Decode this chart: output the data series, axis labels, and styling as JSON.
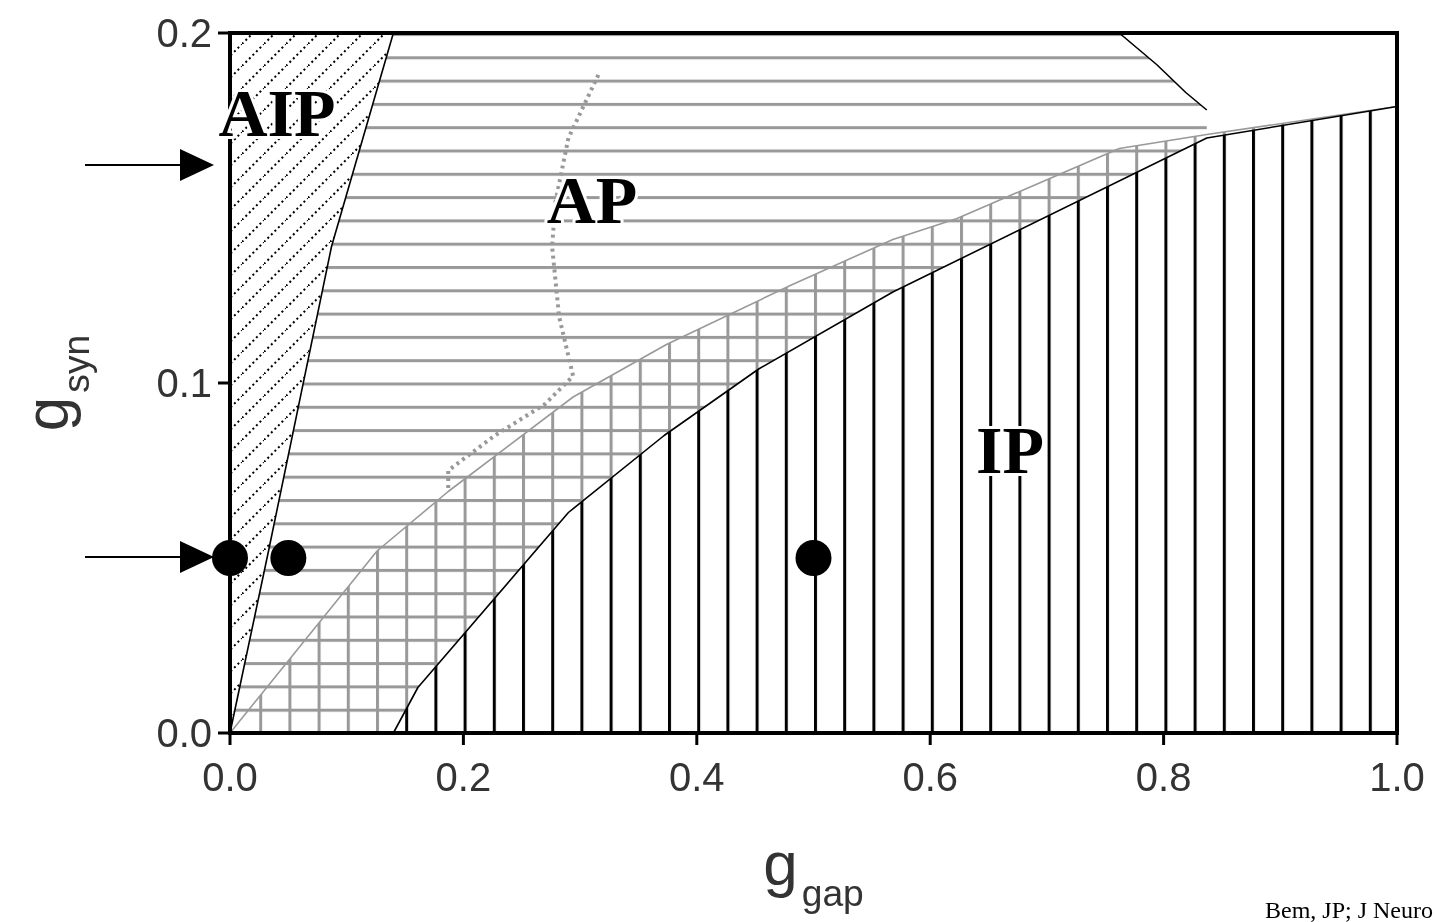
{
  "chart_data": {
    "type": "area",
    "xlabel": "g$_{gap}$",
    "ylabel": "g$_{syn}$",
    "xlim": [
      0,
      1
    ],
    "ylim": [
      0,
      0.2
    ],
    "xticks": [
      {
        "value": 0,
        "label": "0.0"
      },
      {
        "value": 0.2,
        "label": "0.2"
      },
      {
        "value": 0.4,
        "label": "0.4"
      },
      {
        "value": 0.6,
        "label": "0.6"
      },
      {
        "value": 0.8,
        "label": "0.8"
      },
      {
        "value": 1,
        "label": "1.0"
      }
    ],
    "yticks": [
      {
        "value": 0,
        "label": "0.0"
      },
      {
        "value": 0.1,
        "label": "0.1"
      },
      {
        "value": 0.2,
        "label": "0.2"
      }
    ],
    "series": [
      {
        "color": "#000000",
        "x": [
          0,
          0.14
        ],
        "values": [
          0.2,
          0.2
        ]
      },
      {
        "color": "#000000",
        "x": [
          0,
          0.033,
          0.087,
          0.14,
          0.762,
          0.794,
          0.819,
          0.837
        ],
        "values": [
          0,
          0.052,
          0.139,
          0.2,
          0.2,
          0.191,
          0.183,
          0.178
        ]
      },
      {
        "color": "#999999",
        "x": [
          0,
          0.126,
          0.187,
          0.294,
          0.374,
          0.481,
          0.568,
          0.623,
          0.762,
          0.837,
          1
        ],
        "values": [
          0,
          0.052,
          0.069,
          0.096,
          0.111,
          0.128,
          0.141,
          0.147,
          0.167,
          0.171,
          0.179
        ]
      },
      {
        "color": "#000000",
        "x": [
          0.14,
          0.161,
          0.29,
          0.372,
          0.453,
          0.568,
          0.837,
          1
        ],
        "values": [
          0,
          0.013,
          0.063,
          0.085,
          0.104,
          0.126,
          0.17,
          0.179
        ]
      },
      {
        "type": "line",
        "color": "#999999",
        "line_style": "dotted",
        "x": [
          0.187,
          0.187,
          0.227,
          0.27,
          0.294,
          0.282,
          0.276,
          0.279,
          0.29,
          0.317
        ],
        "values": [
          0.07,
          0.075,
          0.085,
          0.094,
          0.102,
          0.119,
          0.139,
          0.152,
          0.17,
          0.189
        ]
      },
      {
        "type": "scatter",
        "color": "#000000",
        "marker": "circle",
        "x": [
          0,
          0.05,
          0.5
        ],
        "values": [
          0.05,
          0.05,
          0.05
        ]
      }
    ],
    "annotations": [
      "AIP",
      "AP",
      "IP",
      "Bem, JP; J Neuro"
    ]
  }
}
